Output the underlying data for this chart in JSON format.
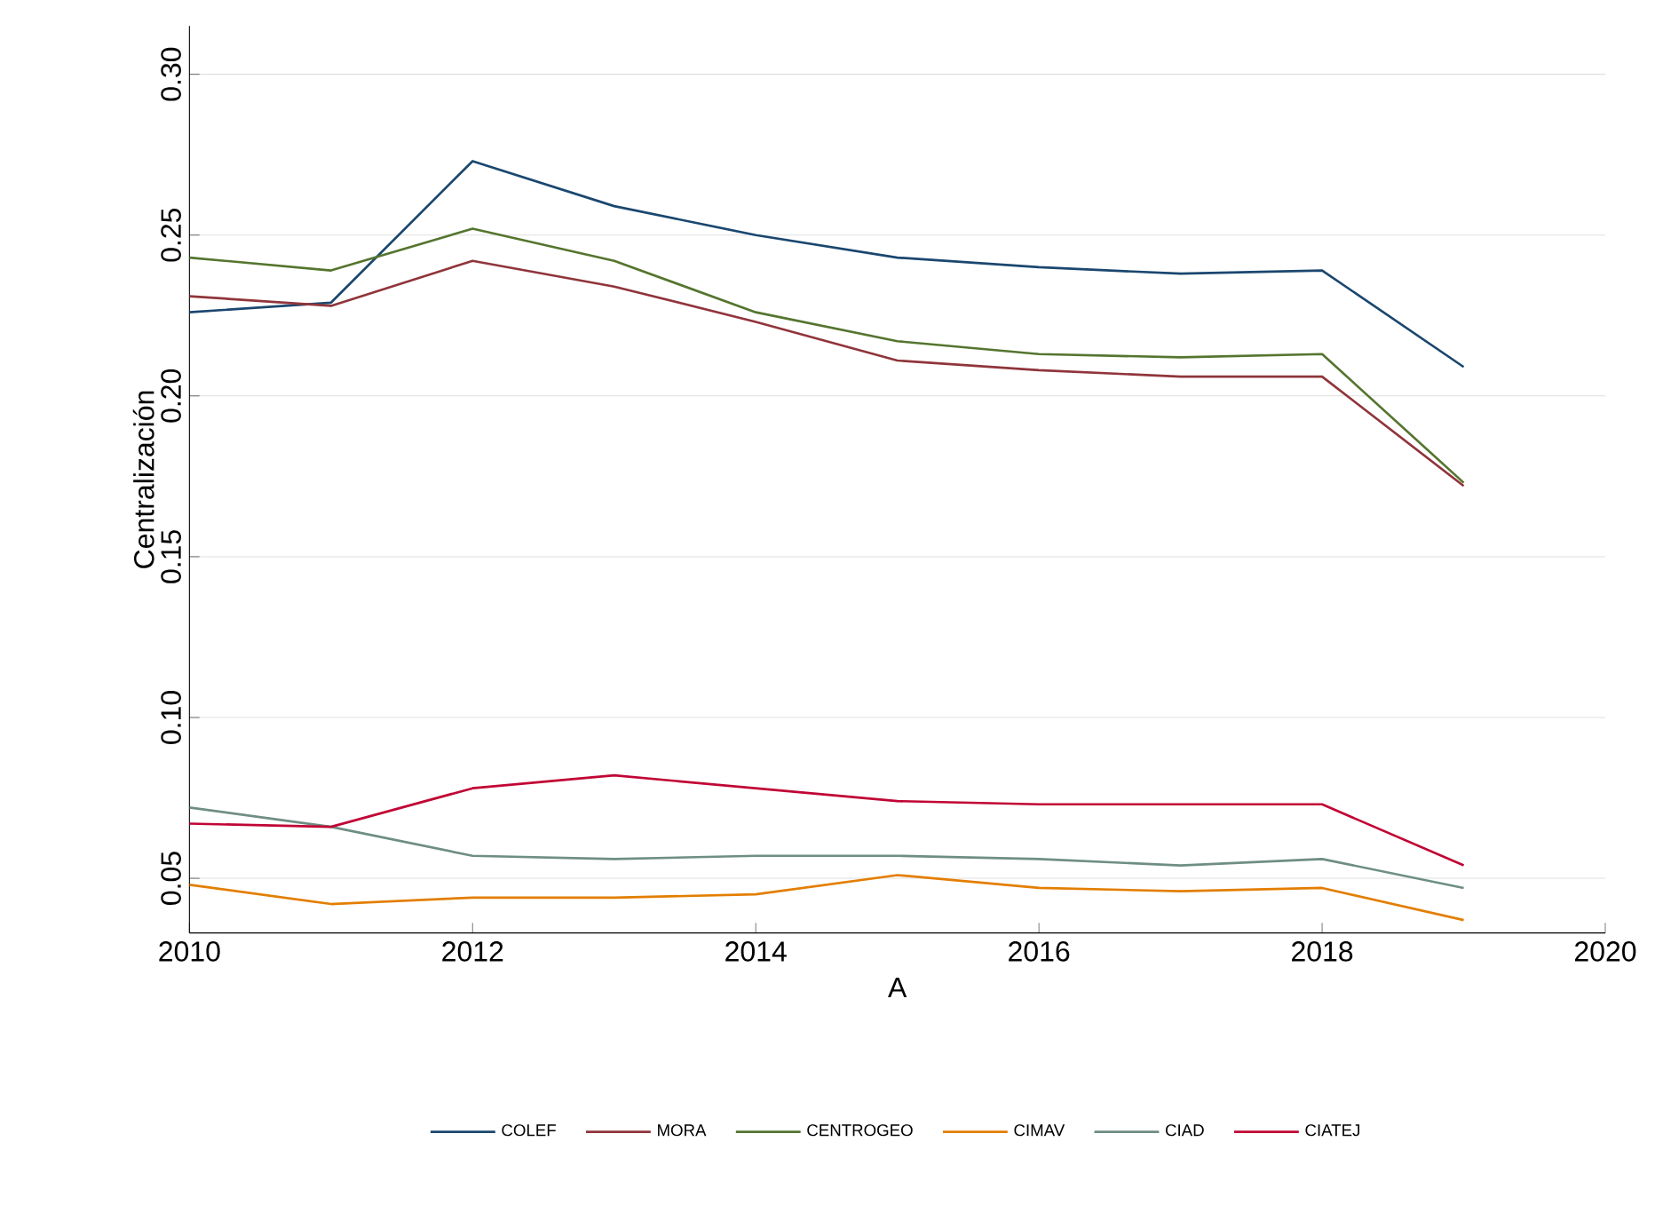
{
  "chart_data": {
    "type": "line",
    "xlabel": "A",
    "ylabel": "Centralización",
    "x": [
      2010,
      2011,
      2012,
      2013,
      2014,
      2015,
      2016,
      2017,
      2018,
      2019
    ],
    "series": [
      {
        "name": "COLEF",
        "color": "#1a476f",
        "values": [
          0.226,
          0.229,
          0.273,
          0.259,
          0.25,
          0.243,
          0.24,
          0.238,
          0.239,
          0.209
        ]
      },
      {
        "name": "MORA",
        "color": "#90353b",
        "values": [
          0.231,
          0.228,
          0.242,
          0.234,
          0.223,
          0.211,
          0.208,
          0.206,
          0.206,
          0.172
        ]
      },
      {
        "name": "CENTROGEO",
        "color": "#55752f",
        "values": [
          0.243,
          0.239,
          0.252,
          0.242,
          0.226,
          0.217,
          0.213,
          0.212,
          0.213,
          0.173
        ]
      },
      {
        "name": "CIMAV",
        "color": "#e37e00",
        "values": [
          0.048,
          0.042,
          0.044,
          0.044,
          0.045,
          0.051,
          0.047,
          0.046,
          0.047,
          0.037
        ]
      },
      {
        "name": "CIAD",
        "color": "#6e8e84",
        "values": [
          0.072,
          0.066,
          0.057,
          0.056,
          0.057,
          0.057,
          0.056,
          0.054,
          0.056,
          0.047
        ]
      },
      {
        "name": "CIATEJ",
        "color": "#c10534",
        "values": [
          0.067,
          0.066,
          0.078,
          0.082,
          0.078,
          0.074,
          0.073,
          0.073,
          0.073,
          0.054
        ]
      }
    ],
    "xlim": [
      2010,
      2020
    ],
    "xticks": [
      2010,
      2012,
      2014,
      2016,
      2018,
      2020
    ],
    "ylim": [
      0.033,
      0.315
    ],
    "yticks": [
      0.05,
      {
        "value": 0.1,
        "label": "0.10"
      },
      0.15,
      {
        "value": 0.2,
        "label": "0.20"
      },
      0.25,
      {
        "value": 0.3,
        "label": "0.30"
      }
    ],
    "grid": "y",
    "legend": "bottom",
    "marker": "none",
    "line_style": "solid"
  }
}
